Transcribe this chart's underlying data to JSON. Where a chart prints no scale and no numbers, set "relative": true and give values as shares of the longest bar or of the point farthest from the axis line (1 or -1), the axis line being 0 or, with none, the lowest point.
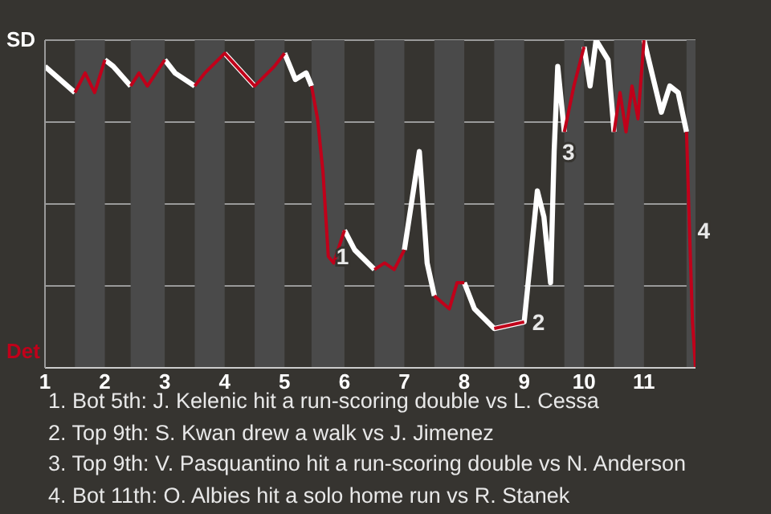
{
  "chart_data": {
    "type": "line",
    "relative": true,
    "x": [
      1,
      1.5,
      1.67,
      1.83,
      2,
      2.14,
      2.43,
      2.57,
      2.71,
      3,
      3.17,
      3.5,
      3.67,
      4,
      4.5,
      4.83,
      5,
      5.18,
      5.36,
      5.45,
      5.55,
      5.64,
      5.73,
      5.82,
      6,
      6.17,
      6.5,
      6.67,
      6.83,
      7,
      7.25,
      7.38,
      7.5,
      7.75,
      7.88,
      8,
      8.17,
      8.5,
      9,
      9.22,
      9.33,
      9.44,
      9.5,
      9.56,
      9.67,
      9.83,
      10,
      10.1,
      10.2,
      10.4,
      10.5,
      10.6,
      10.7,
      10.8,
      10.9,
      11,
      11.29,
      11.43,
      11.57,
      11.71,
      11.76,
      11.81,
      11.86
    ],
    "series": [
      {
        "name": "SD",
        "color": "#ffffff",
        "values": [
          0.92,
          0.84,
          null,
          null,
          0.94,
          0.92,
          0.86,
          null,
          null,
          0.94,
          0.9,
          0.86,
          null,
          0.96,
          0.86,
          null,
          0.96,
          0.88,
          0.9,
          0.86,
          null,
          null,
          null,
          null,
          0.42,
          0.36,
          0.3,
          null,
          null,
          0.36,
          0.66,
          0.32,
          0.22,
          null,
          null,
          0.26,
          0.18,
          0.12,
          0.14,
          0.54,
          0.46,
          0.26,
          0.66,
          0.92,
          0.72,
          null,
          0.98,
          0.86,
          1,
          0.94,
          0.72,
          null,
          null,
          null,
          null,
          1,
          0.78,
          0.86,
          0.84,
          0.72,
          null,
          null,
          null
        ]
      },
      {
        "name": "Det",
        "color": "#c0001a",
        "values": [
          null,
          0.84,
          0.9,
          0.84,
          0.94,
          null,
          0.86,
          0.9,
          0.86,
          0.94,
          null,
          0.86,
          0.9,
          0.96,
          0.86,
          0.92,
          0.96,
          null,
          null,
          0.86,
          0.76,
          0.6,
          0.34,
          0.32,
          0.42,
          null,
          0.3,
          0.32,
          0.3,
          0.36,
          null,
          null,
          0.22,
          0.18,
          0.26,
          0.26,
          null,
          0.12,
          0.14,
          null,
          null,
          null,
          null,
          null,
          0.72,
          0.86,
          0.98,
          null,
          null,
          null,
          0.72,
          0.84,
          0.72,
          0.86,
          0.76,
          1,
          null,
          null,
          null,
          0.72,
          0.42,
          0.14,
          0
        ]
      }
    ],
    "xlim": [
      1,
      11.86
    ],
    "xticks": [
      1,
      2,
      3,
      4,
      5,
      6,
      7,
      8,
      9,
      10,
      11
    ],
    "grid": "y",
    "legend": "left",
    "line_style": "solid",
    "bands": [
      {
        "axis": "x",
        "from": 1.5,
        "to": 2,
        "color": "#4a4a4a"
      },
      {
        "axis": "x",
        "from": 2.43,
        "to": 3,
        "color": "#4a4a4a"
      },
      {
        "axis": "x",
        "from": 3.5,
        "to": 4,
        "color": "#4a4a4a"
      },
      {
        "axis": "x",
        "from": 4.5,
        "to": 5,
        "color": "#4a4a4a"
      },
      {
        "axis": "x",
        "from": 5.45,
        "to": 6,
        "color": "#4a4a4a"
      },
      {
        "axis": "x",
        "from": 6.5,
        "to": 7,
        "color": "#4a4a4a"
      },
      {
        "axis": "x",
        "from": 7.5,
        "to": 8,
        "color": "#4a4a4a"
      },
      {
        "axis": "x",
        "from": 8.5,
        "to": 9,
        "color": "#4a4a4a"
      },
      {
        "axis": "x",
        "from": 9.67,
        "to": 10,
        "color": "#4a4a4a"
      },
      {
        "axis": "x",
        "from": 10.5,
        "to": 11,
        "color": "#4a4a4a"
      },
      {
        "axis": "x",
        "from": 11.71,
        "to": 11.86,
        "color": "#4a4a4a"
      }
    ],
    "annotations": [
      {
        "text": "1",
        "x": 5.73,
        "y": 0.34
      },
      {
        "text": "2",
        "x": 9,
        "y": 0.14
      },
      {
        "text": "3",
        "x": 9.5,
        "y": 0.66
      },
      {
        "text": "4",
        "x": 11.76,
        "y": 0.42
      },
      "1. Bot 5th: J. Kelenic hit a run-scoring double vs L. Cessa",
      "2. Top 9th: S. Kwan drew a walk vs J. Jimenez",
      "3. Top 9th: V. Pasquantino hit a run-scoring double vs N. Anderson",
      "4. Bot 11th: O. Albies hit a solo home run vs R. Stanek"
    ]
  }
}
